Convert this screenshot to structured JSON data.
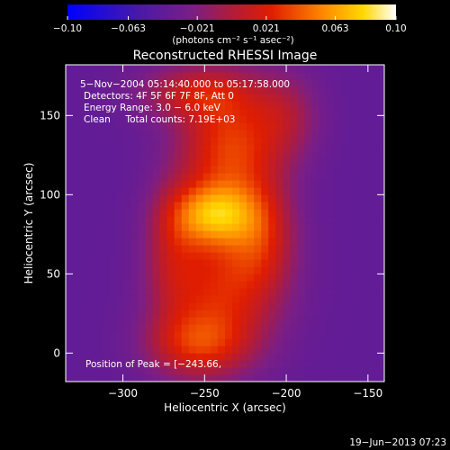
{
  "chart_data": {
    "type": "heatmap",
    "title": "Reconstructed RHESSI Image",
    "xlabel": "Heliocentric X (arcsec)",
    "ylabel": "Heliocentric Y (arcsec)",
    "xlim": [
      -335,
      -140
    ],
    "ylim": [
      -18,
      182
    ],
    "x_ticks": [
      -300,
      -250,
      -200,
      -150
    ],
    "x_tick_labels": [
      "−300",
      "−250",
      "−200",
      "−150"
    ],
    "y_ticks": [
      0,
      50,
      100,
      150
    ],
    "y_tick_labels": [
      "0",
      "50",
      "100",
      "150"
    ],
    "colorbar": {
      "range": [
        -0.1,
        0.1
      ],
      "tick_values": [
        -0.1,
        -0.063,
        -0.021,
        0.021,
        0.063,
        0.1
      ],
      "tick_labels": [
        "−0.10",
        "−0.063",
        "−0.021",
        "0.021",
        "0.063",
        "0.10"
      ],
      "units_text": "(photons cm⁻² s⁻¹ asec⁻²)",
      "colormap": "blue-purple-red-yellow-white"
    },
    "annotations": [
      "5−Nov−2004 05:14:40.000 to 05:17:58.000",
      "Detectors: 4F 5F 6F 7F 8F, Att 0",
      "Energy Range: 3.0 − 6.0 keV",
      "Clean     Total counts: 7.19E+03"
    ],
    "peak_label": "Position of Peak = [−243.66,",
    "peak_location": [
      -243.66,
      88
    ],
    "sources": [
      {
        "x": -245,
        "y": 88,
        "sx": 18,
        "sy": 14,
        "amp": 0.08
      },
      {
        "x": -235,
        "y": 130,
        "sx": 22,
        "sy": 26,
        "amp": 0.07
      },
      {
        "x": -240,
        "y": 40,
        "sx": 25,
        "sy": 30,
        "amp": 0.06
      },
      {
        "x": -255,
        "y": 5,
        "sx": 22,
        "sy": 15,
        "amp": 0.05
      },
      {
        "x": -215,
        "y": 75,
        "sx": 15,
        "sy": 25,
        "amp": 0.045
      },
      {
        "x": -255,
        "y": 165,
        "sx": 25,
        "sy": 12,
        "amp": 0.045
      },
      {
        "x": -200,
        "y": 150,
        "sx": 15,
        "sy": 20,
        "amp": 0.03
      },
      {
        "x": -270,
        "y": 65,
        "sx": 12,
        "sy": 30,
        "amp": 0.03
      }
    ],
    "background_level": -0.04,
    "date_stamp": "19−Jun−2013 07:23"
  }
}
